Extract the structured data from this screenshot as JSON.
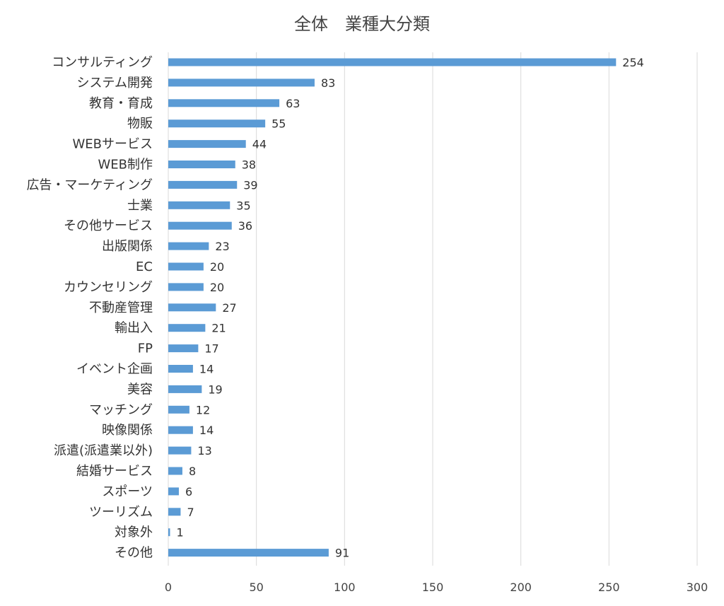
{
  "chart_data": {
    "type": "bar",
    "orientation": "horizontal",
    "title": "全体　業種大分類",
    "xlabel": "",
    "ylabel": "",
    "categories": [
      "コンサルティング",
      "システム開発",
      "教育・育成",
      "物販",
      "WEBサービス",
      "WEB制作",
      "広告・マーケティング",
      "士業",
      "その他サービス",
      "出版関係",
      "EC",
      "カウンセリング",
      "不動産管理",
      "輸出入",
      "FP",
      "イベント企画",
      "美容",
      "マッチング",
      "映像関係",
      "派遣(派遣業以外)",
      "結婚サービス",
      "スポーツ",
      "ツーリズム",
      "対象外",
      "その他"
    ],
    "series": [
      {
        "values": [
          254,
          83,
          63,
          55,
          44,
          38,
          39,
          35,
          36,
          23,
          20,
          20,
          27,
          21,
          17,
          14,
          19,
          12,
          14,
          13,
          8,
          6,
          7,
          1,
          91
        ]
      }
    ],
    "data_labels": [
      "254",
      "83",
      "63",
      "55",
      "44",
      "38",
      "39",
      "35",
      "36",
      "23",
      "20",
      "20",
      "27",
      "21",
      "17",
      "14",
      "19",
      "12",
      "14",
      "13",
      "8",
      "6",
      "7",
      "1",
      "91"
    ],
    "xlim": [
      0,
      300
    ],
    "x_ticks": [
      0,
      50,
      100,
      150,
      200,
      250,
      300
    ],
    "x_tick_labels": [
      "0",
      "50",
      "100",
      "150",
      "200",
      "250",
      "300"
    ],
    "grid": "vertical",
    "legend": "none",
    "colors": {
      "bar": "#5B9BD5",
      "grid": "#D9D9D9",
      "text": "#333333",
      "title": "#444444"
    }
  }
}
